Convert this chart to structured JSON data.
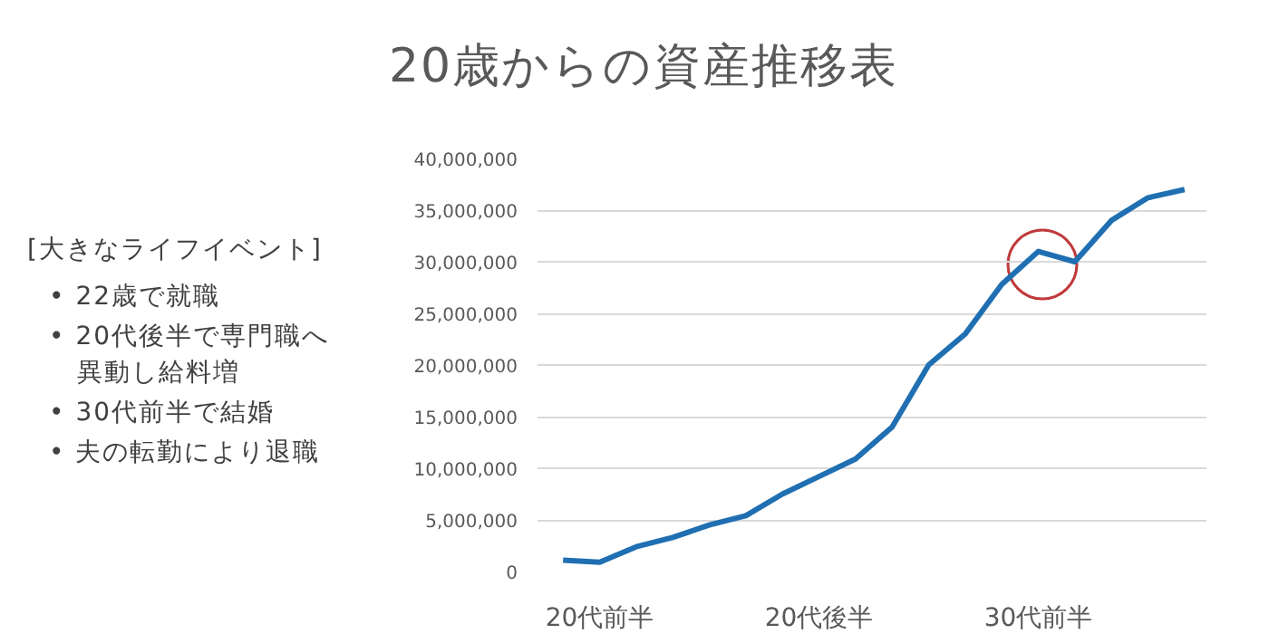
{
  "chart_data": {
    "type": "line",
    "title": "20歳からの資産推移表",
    "categories": [
      null,
      "20代前半",
      null,
      null,
      null,
      null,
      null,
      "20代後半",
      null,
      null,
      null,
      null,
      null,
      "30代前半",
      null,
      null,
      null,
      null
    ],
    "series": [
      {
        "color": "#1f6fb2",
        "values": [
          1100000,
          900000,
          2400000,
          3300000,
          4500000,
          5400000,
          7500000,
          9200000,
          10900000,
          14000000,
          20000000,
          23000000,
          27800000,
          31000000,
          30000000,
          34000000,
          36200000,
          37000000
        ]
      }
    ],
    "ylim": [
      0,
      40000000
    ],
    "yticks": [
      0,
      {
        "value": 5000000,
        "label": "5,000,000"
      },
      {
        "value": 10000000,
        "label": "10,000,000"
      },
      {
        "value": 15000000,
        "label": "15,000,000"
      },
      {
        "value": 20000000,
        "label": "20,000,000"
      },
      {
        "value": 25000000,
        "label": "25,000,000"
      },
      {
        "value": 30000000,
        "label": "30,000,000"
      },
      {
        "value": 35000000,
        "label": "35,000,000"
      },
      {
        "value": 40000000,
        "label": "40,000,000"
      }
    ],
    "grid": "y",
    "annotations": [
      "[大きなライフイベント]",
      "• 22歳で就職",
      "• 20代後半で専門職へ異動し給料増",
      "• 30代前半で結婚",
      "• 夫の転勤により退職"
    ]
  }
}
